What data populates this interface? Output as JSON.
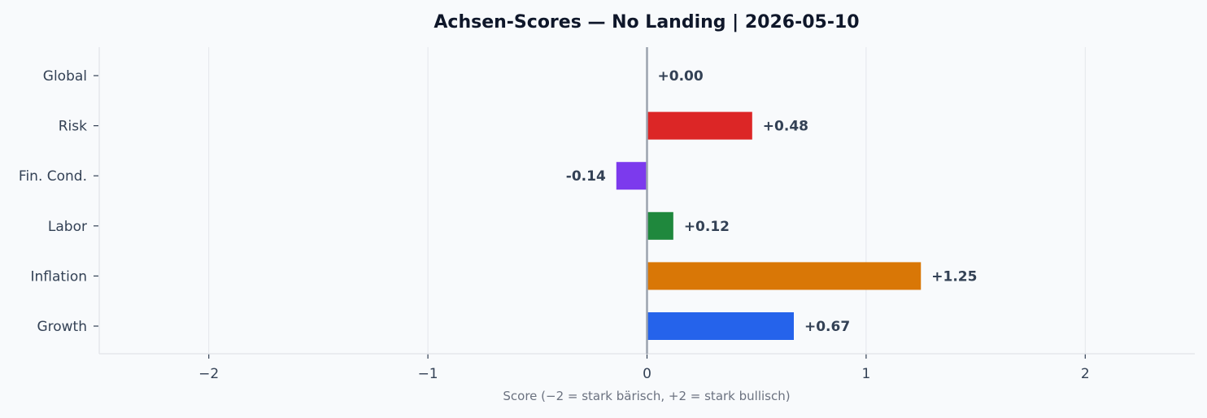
{
  "chart_data": {
    "type": "bar",
    "orientation": "horizontal",
    "title": "Achsen-Scores — No Landing | 2026-05-10",
    "xlabel": "Score (−2 = stark bärisch, +2 = stark bullisch)",
    "ylabel": "",
    "xlim": [
      -2.5,
      2.5
    ],
    "xticks": [
      -2,
      -1,
      0,
      1,
      2
    ],
    "xtick_labels": [
      "−2",
      "−1",
      "0",
      "1",
      "2"
    ],
    "grid": "x-axis vertical lines",
    "categories": [
      "Global",
      "Risk",
      "Fin. Cond.",
      "Labor",
      "Inflation",
      "Growth"
    ],
    "values": [
      0.0,
      0.48,
      -0.14,
      0.12,
      1.25,
      0.67
    ],
    "value_labels": [
      "+0.00",
      "+0.48",
      "-0.14",
      "+0.12",
      "+1.25",
      "+0.67"
    ],
    "colors": [
      "#6b7280",
      "#dc2626",
      "#7c3aed",
      "#1f883d",
      "#d97706",
      "#2563eb"
    ],
    "zero_line_color": "#9ca3af",
    "background": "#f8fafc"
  }
}
